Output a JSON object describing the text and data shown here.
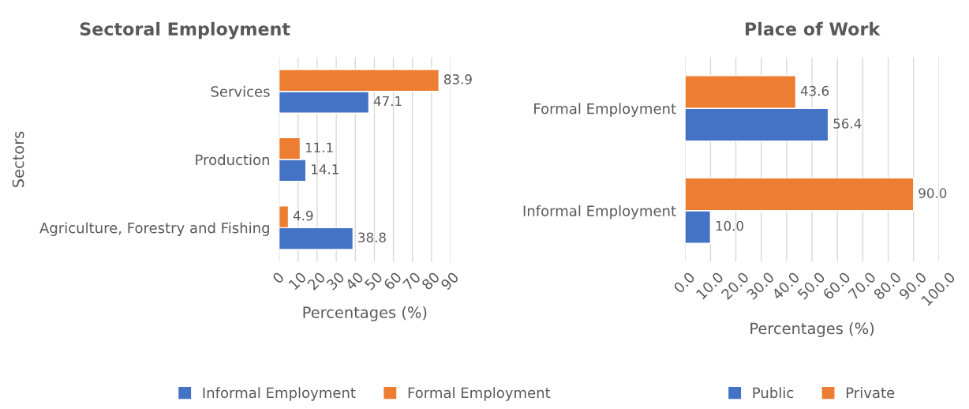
{
  "chart_data": [
    {
      "type": "bar",
      "orientation": "horizontal",
      "title": "Sectoral Employment",
      "xlabel": "Percentages (%)",
      "ylabel": "Sectors",
      "categories": [
        "Services",
        "Production",
        "Agriculture, Forestry and Fishing"
      ],
      "series": [
        {
          "name": "Informal Employment",
          "color": "#4472c4",
          "values": [
            47.1,
            14.1,
            38.8
          ]
        },
        {
          "name": "Formal Employment",
          "color": "#ed7d31",
          "values": [
            83.9,
            11.1,
            4.9
          ]
        }
      ],
      "xlim": [
        0,
        90
      ],
      "xticks": [
        0,
        10,
        20,
        30,
        40,
        50,
        60,
        70,
        80,
        90
      ],
      "grid": "x",
      "legend": "bottom",
      "data_labels": true
    },
    {
      "type": "bar",
      "orientation": "horizontal",
      "title": "Place of Work",
      "xlabel": "Percentages (%)",
      "categories": [
        "Formal Employment",
        "Informal Employment"
      ],
      "series": [
        {
          "name": "Public",
          "color": "#4472c4",
          "values": [
            56.4,
            10.0
          ],
          "value_labels": [
            "56.4",
            "10.0"
          ]
        },
        {
          "name": "Private",
          "color": "#ed7d31",
          "values": [
            43.6,
            90.0
          ],
          "value_labels": [
            "43.6",
            "90.0"
          ]
        }
      ],
      "xlim": [
        0,
        100
      ],
      "xticks": [
        {
          "value": 0,
          "label": "0.0"
        },
        {
          "value": 10,
          "label": "10.0"
        },
        {
          "value": 20,
          "label": "20.0"
        },
        {
          "value": 30,
          "label": "30.0"
        },
        {
          "value": 40,
          "label": "40.0"
        },
        {
          "value": 50,
          "label": "50.0"
        },
        {
          "value": 60,
          "label": "60.0"
        },
        {
          "value": 70,
          "label": "70.0"
        },
        {
          "value": 80,
          "label": "80.0"
        },
        {
          "value": 90,
          "label": "90.0"
        },
        {
          "value": 100,
          "label": "100.0"
        }
      ],
      "grid": "x",
      "legend": "bottom"
    }
  ]
}
